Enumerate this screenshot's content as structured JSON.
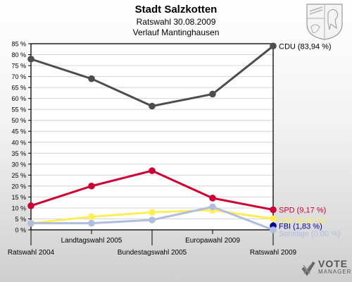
{
  "header": {
    "title": "Stadt Salzkotten",
    "subtitle": "Ratswahl 30.08.2009",
    "subtitle2": "Verlauf Mantinghausen"
  },
  "logo": {
    "line1": "VOTE",
    "line2": "MANAGER"
  },
  "colors": {
    "CDU": "#4d4d4d",
    "SPD": "#cc0033",
    "FDP": "#ffee55",
    "FBI": "#000099",
    "Sonstige": "#b0bce0"
  },
  "chart_data": {
    "type": "line",
    "categories": [
      "Ratswahl 2004",
      "Landtagswahl 2005",
      "Bundestagswahl 2005",
      "Europawahl 2009",
      "Ratswahl 2009"
    ],
    "ylim": [
      0,
      85
    ],
    "yticks": [
      0,
      5,
      10,
      15,
      20,
      25,
      30,
      35,
      40,
      45,
      50,
      55,
      60,
      65,
      70,
      75,
      80,
      85
    ],
    "ytick_labels": [
      "0 %",
      "5 %",
      "10 %",
      "15 %",
      "20 %",
      "25 %",
      "30 %",
      "35 %",
      "40 %",
      "45 %",
      "50 %",
      "55 %",
      "60 %",
      "65 %",
      "70 %",
      "75 %",
      "80 %",
      "85 %"
    ],
    "grid": true,
    "series": [
      {
        "name": "CDU",
        "values": [
          78,
          69,
          56.5,
          62,
          83.94
        ],
        "label": "CDU (83,94 %)"
      },
      {
        "name": "SPD",
        "values": [
          11,
          20,
          27,
          14.5,
          9.17
        ],
        "label": "SPD (9,17 %)"
      },
      {
        "name": "FDP",
        "values": [
          3,
          6,
          8,
          9,
          5.06
        ],
        "label": "FDP (5,06 %)"
      },
      {
        "name": "FBI",
        "values": [
          null,
          null,
          null,
          null,
          1.83
        ],
        "label": "FBI (1,83 %)"
      },
      {
        "name": "Sonstige",
        "values": [
          3,
          3,
          4.5,
          10.5,
          0.0
        ],
        "label": "Sonstige (0,00 %)"
      }
    ]
  }
}
